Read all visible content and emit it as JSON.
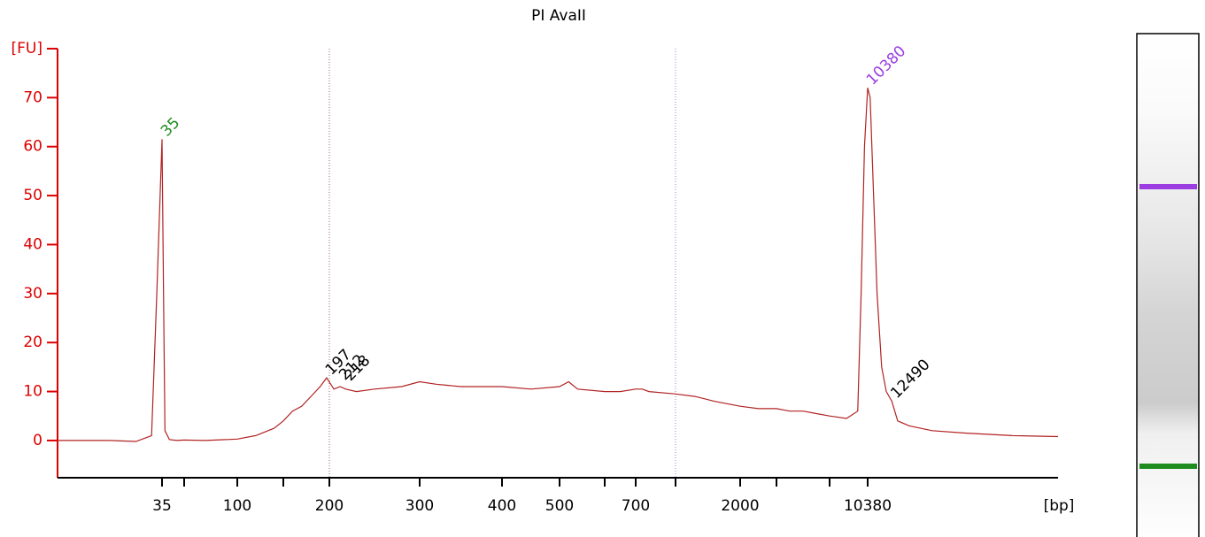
{
  "chart_data": {
    "type": "line",
    "title": "PI AvaII",
    "y_label": "[FU]",
    "x_label": "[bp]",
    "color": "#b22222",
    "axis_color": "#dd0000",
    "x": [
      15,
      25,
      30,
      33,
      34,
      35,
      36,
      37,
      40,
      45,
      50,
      70,
      100,
      120,
      140,
      150,
      160,
      170,
      180,
      190,
      197,
      205,
      212,
      218,
      230,
      250,
      280,
      300,
      320,
      350,
      400,
      450,
      500,
      520,
      540,
      600,
      650,
      700,
      750,
      800,
      1000,
      1300,
      1600,
      2000,
      2500,
      3000,
      4000,
      5000,
      6000,
      7000,
      8500,
      9500,
      9800,
      10100,
      10380,
      10600,
      10900,
      11200,
      11600,
      12000,
      12490,
      13000,
      14000,
      16000,
      19000,
      23000,
      27000
    ],
    "values": [
      0,
      0,
      -0.2,
      1,
      30,
      61.5,
      30,
      2,
      0.2,
      0,
      0.1,
      0,
      0.3,
      1,
      2.5,
      4,
      6,
      7,
      9,
      11,
      12.8,
      10.5,
      11,
      10.5,
      10,
      10.5,
      11,
      12,
      11.5,
      11,
      11,
      10.5,
      11,
      12,
      10.5,
      10,
      10,
      10.5,
      10.5,
      10,
      9.5,
      9,
      8,
      7,
      6.5,
      6.5,
      6,
      6,
      5.5,
      5,
      4.5,
      6,
      30,
      60,
      72,
      70,
      50,
      30,
      15,
      10,
      8,
      4,
      3,
      2,
      1.5,
      1,
      0.8
    ],
    "xlim": [
      15,
      27000
    ],
    "xticks": [
      35,
      100,
      200,
      300,
      400,
      500,
      700,
      2000,
      10380
    ],
    "xminorticks": [
      50,
      150,
      600,
      1000,
      3000,
      7000
    ],
    "ylim": [
      -7.6,
      80
    ],
    "yticks": [
      0,
      10,
      20,
      30,
      40,
      50,
      60,
      70
    ],
    "dotted_lines": [
      200,
      1000
    ],
    "peaks": {
      "x": [
        35,
        197,
        212,
        218,
        10380,
        12490
      ],
      "heights": [
        61.5,
        12.8,
        11,
        10.5,
        72,
        8
      ],
      "colors": [
        "#1e8c1e",
        "#000000",
        "#000000",
        "#000000",
        "#9b3de0",
        "#000000"
      ]
    }
  }
}
